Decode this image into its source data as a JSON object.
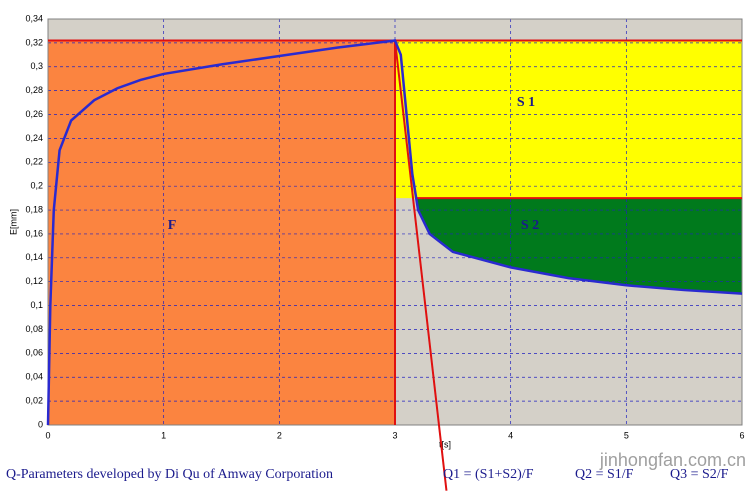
{
  "chart_data": {
    "type": "line",
    "x_label": "t[s]",
    "y_label": "E[mm]",
    "x": [
      0,
      0.02,
      0.05,
      0.1,
      0.2,
      0.4,
      0.6,
      0.8,
      1,
      1.5,
      2,
      2.5,
      3,
      3.05,
      3.1,
      3.15,
      3.2,
      3.3,
      3.5,
      4,
      4.5,
      5,
      5.5,
      6
    ],
    "values": [
      0,
      0.1,
      0.18,
      0.23,
      0.255,
      0.272,
      0.282,
      0.289,
      0.294,
      0.302,
      0.309,
      0.316,
      0.322,
      0.31,
      0.26,
      0.21,
      0.18,
      0.16,
      0.145,
      0.132,
      0.123,
      0.117,
      0.113,
      0.11
    ],
    "color": "#2a2ad0",
    "xlim": [
      0,
      6
    ],
    "xticks": [
      0,
      1,
      2,
      3,
      4,
      5,
      6
    ],
    "ylim": [
      0,
      0.34
    ],
    "yticks": [
      0,
      {
        "value": 0.02,
        "label": "0,02"
      },
      {
        "value": 0.04,
        "label": "0,04"
      },
      {
        "value": 0.06,
        "label": "0,06"
      },
      {
        "value": 0.08,
        "label": "0,08"
      },
      {
        "value": 0.1,
        "label": "0,1"
      },
      {
        "value": 0.12,
        "label": "0,12"
      },
      {
        "value": 0.14,
        "label": "0,14"
      },
      {
        "value": 0.16,
        "label": "0,16"
      },
      {
        "value": 0.18,
        "label": "0,18"
      },
      {
        "value": 0.2,
        "label": "0,2"
      },
      {
        "value": 0.22,
        "label": "0,22"
      },
      {
        "value": 0.24,
        "label": "0,24"
      },
      {
        "value": 0.26,
        "label": "0,26"
      },
      {
        "value": 0.28,
        "label": "0,28"
      },
      {
        "value": 0.3,
        "label": "0,3"
      },
      {
        "value": 0.32,
        "label": "0,32"
      },
      {
        "value": 0.34,
        "label": "0,34"
      }
    ],
    "grid": true,
    "load_end_x": 3,
    "max_y": 0.322,
    "recovery_y": 0.19,
    "tangent_end": [
      3.445,
      -0.055
    ],
    "regions": {
      "F": "F",
      "S1": "S 1",
      "S2": "S 2"
    },
    "footer": {
      "credit": "Q-Parameters developed by  Di Qu of Amway Corporation",
      "q1": "Q1 = (S1+S2)/F",
      "q2": "Q2 = S1/F",
      "q3": "Q3 = S2/F"
    },
    "watermark": "jinhongfan.com.cn"
  }
}
